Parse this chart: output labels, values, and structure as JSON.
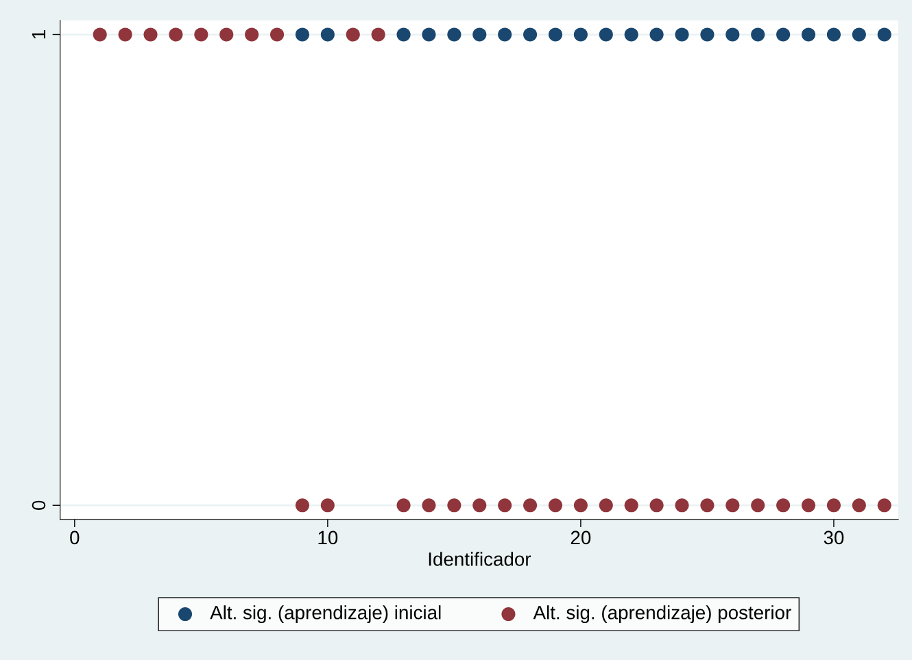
{
  "chart_data": {
    "type": "scatter",
    "xlabel": "Identificador",
    "x": [
      1,
      2,
      3,
      4,
      5,
      6,
      7,
      8,
      9,
      10,
      11,
      12,
      13,
      14,
      15,
      16,
      17,
      18,
      19,
      20,
      21,
      22,
      23,
      24,
      25,
      26,
      27,
      28,
      29,
      30,
      31,
      32
    ],
    "series": [
      {
        "name": "Alt. sig. (aprendizaje) inicial",
        "color": "#1a476f",
        "values": [
          null,
          null,
          null,
          null,
          null,
          null,
          null,
          null,
          1,
          1,
          null,
          null,
          1,
          1,
          1,
          1,
          1,
          1,
          1,
          1,
          1,
          1,
          1,
          1,
          1,
          1,
          1,
          1,
          1,
          1,
          1,
          1
        ]
      },
      {
        "name": "Alt. sig. (aprendizaje) posterior",
        "color": "#90353b",
        "values": [
          1,
          1,
          1,
          1,
          1,
          1,
          1,
          1,
          0,
          0,
          1,
          1,
          0,
          0,
          0,
          0,
          0,
          0,
          0,
          0,
          0,
          0,
          0,
          0,
          0,
          0,
          0,
          0,
          0,
          0,
          0,
          0
        ]
      }
    ],
    "xlim": [
      -0.57,
      32.55
    ],
    "xticks": [
      0,
      10,
      20,
      30
    ],
    "ylim": [
      -0.03,
      1.03
    ],
    "yticks": [
      0,
      1
    ],
    "grid": "y",
    "legend": "bottom",
    "marker": "circle"
  }
}
